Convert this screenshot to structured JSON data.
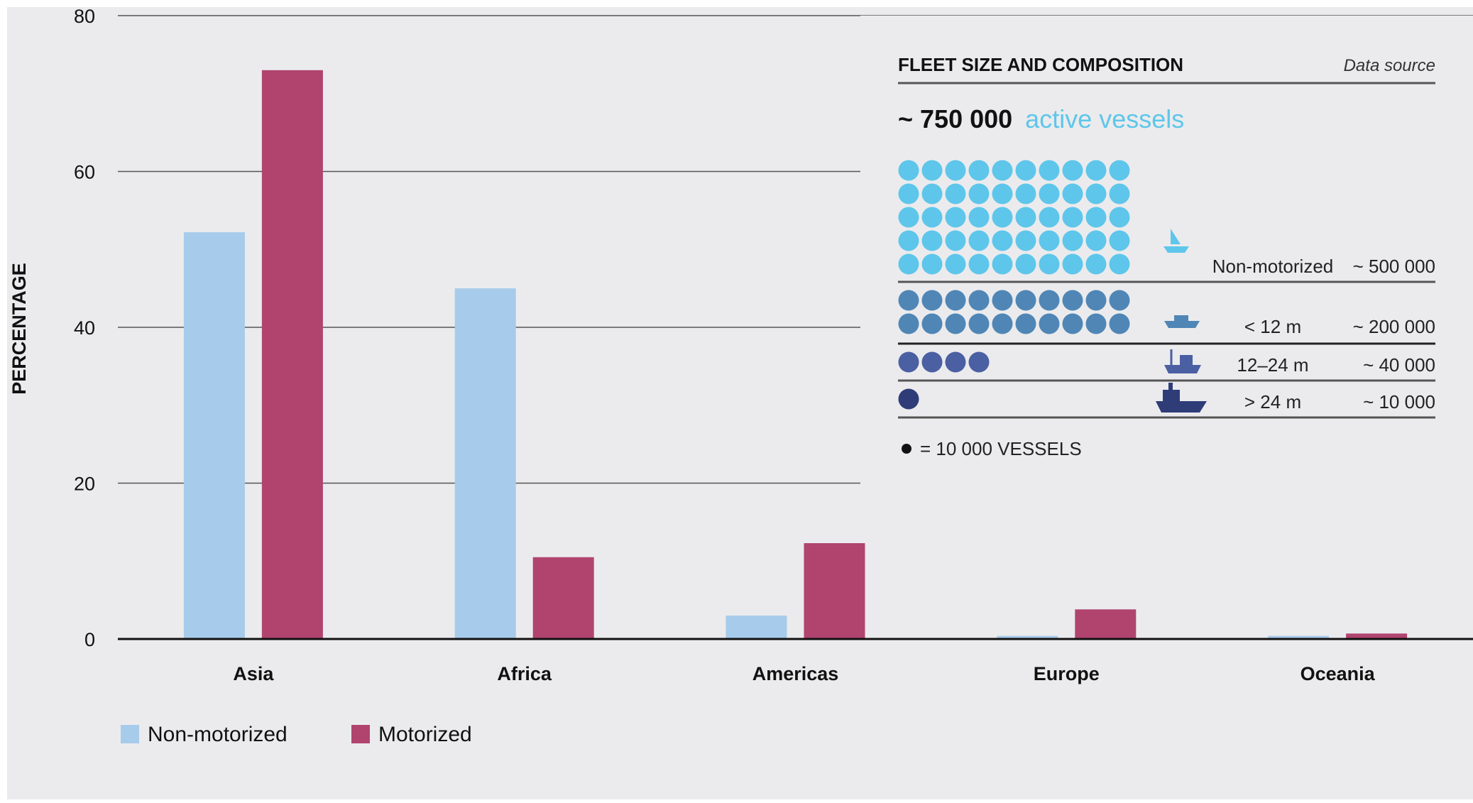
{
  "chart_data": {
    "type": "bar",
    "ylabel": "PERCENTAGE",
    "xlabel": "",
    "ylim": [
      0,
      80
    ],
    "yticks": [
      0,
      20,
      40,
      60,
      80
    ],
    "grid": true,
    "legend_position": "bottom-left",
    "categories": [
      "Asia",
      "Africa",
      "Americas",
      "Europe",
      "Oceania"
    ],
    "series": [
      {
        "name": "Non-motorized",
        "color": "#a7cbea",
        "values": [
          52.2,
          45.0,
          3.0,
          0.4,
          0.4
        ]
      },
      {
        "name": "Motorized",
        "color": "#b0446f",
        "values": [
          73.0,
          10.5,
          12.3,
          3.8,
          0.7
        ]
      }
    ]
  },
  "inset": {
    "title": "FLEET SIZE AND COMPOSITION",
    "source": "Data source",
    "total_prefix": "~ 750 000",
    "total_suffix": "active vessels",
    "legend_note": "= 10  000 VESSELS",
    "rows": [
      {
        "dots": 50,
        "color": "#5ec6ea",
        "icon": "sailboat-icon",
        "label": "Non-motorized",
        "value": "~ 500 000"
      },
      {
        "dots": 20,
        "color": "#4f86b6",
        "icon": "small-boat-icon",
        "label": "< 12 m",
        "value": "~ 200 000"
      },
      {
        "dots": 4,
        "color": "#4b5fa3",
        "icon": "fishing-boat-icon",
        "label": "12–24 m",
        "value": "~ 40 000"
      },
      {
        "dots": 1,
        "color": "#2e3c78",
        "icon": "large-vessel-icon",
        "label": "> 24 m",
        "value": "~ 10 000"
      }
    ]
  }
}
